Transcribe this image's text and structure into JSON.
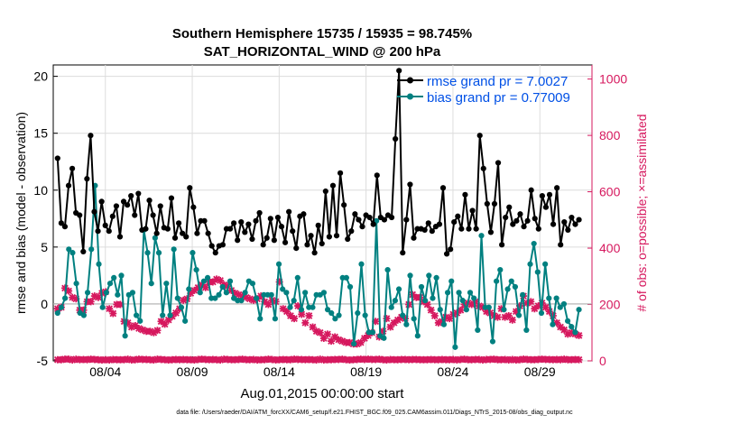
{
  "title_line1": "Southern Hemisphere 15735 / 15935 = 98.745%",
  "title_line2": "SAT_HORIZONTAL_WIND @ 200 hPa",
  "footer": "data file: /Users/raeder/DAI/ATM_forcXX/CAM6_setup/f.e21.FHIST_BGC.f09_025.CAM6assim.011/Diags_NTrS_2015-08/obs_diag_output.nc",
  "colors": {
    "rmse": "#000000",
    "bias": "#008080",
    "obs": "#d6185e",
    "legend_text": "#0050e6"
  },
  "chart_data": {
    "type": "line",
    "xlabel": "Aug.01,2015 00:00:00 start",
    "ylabel_left": "rmse and bias (model - observation)",
    "ylabel_right": "# of obs: o=possible; ×=assimilated",
    "xlim": [
      0,
      62
    ],
    "ylim_left": [
      -5,
      21
    ],
    "ylim_right": [
      0,
      1050
    ],
    "x_ticks": [
      {
        "x": 6,
        "label": "08/04"
      },
      {
        "x": 16,
        "label": "08/09"
      },
      {
        "x": 26,
        "label": "08/14"
      },
      {
        "x": 36,
        "label": "08/19"
      },
      {
        "x": 46,
        "label": "08/24"
      },
      {
        "x": 56,
        "label": "08/29"
      }
    ],
    "y_ticks_left": [
      -5,
      0,
      5,
      10,
      15,
      20
    ],
    "y_ticks_right": [
      0,
      200,
      400,
      600,
      800,
      1000
    ],
    "legend": [
      {
        "key": "rmse",
        "label": "rmse grand pr = 7.0027"
      },
      {
        "key": "bias",
        "label": "bias grand pr = 0.77009"
      }
    ],
    "series": [
      {
        "name": "rmse",
        "axis": "left",
        "values": [
          12.8,
          7.1,
          6.8,
          10.4,
          11.9,
          8.0,
          7.8,
          4.6,
          11.0,
          14.8,
          8.1,
          6.4,
          9.0,
          6.9,
          6.4,
          7.7,
          8.6,
          5.9,
          9.0,
          8.7,
          9.5,
          7.8,
          9.7,
          6.5,
          6.6,
          9.1,
          7.8,
          6.2,
          8.6,
          6.7,
          6.6,
          9.3,
          5.8,
          7.1,
          6.2,
          5.9,
          10.2,
          8.5,
          6.2,
          7.3,
          7.3,
          6.2,
          5.1,
          4.5,
          5.1,
          5.2,
          6.6,
          6.6,
          7.1,
          5.6,
          7.2,
          6.3,
          7.0,
          5.7,
          7.3,
          8.0,
          5.2,
          5.8,
          7.5,
          5.6,
          7.6,
          6.8,
          5.4,
          8.1,
          6.4,
          4.9,
          7.7,
          7.9,
          5.2,
          6.0,
          4.5,
          6.9,
          5.3,
          9.9,
          5.9,
          10.4,
          6.0,
          11.5,
          8.7,
          5.7,
          6.4,
          7.9,
          7.4,
          6.8,
          7.8,
          7.6,
          7.0,
          11.3,
          7.6,
          7.4,
          7.8,
          7.6,
          14.5,
          20.5,
          4.5,
          7.4,
          10.5,
          5.8,
          6.6,
          6.6,
          6.5,
          7.1,
          6.4,
          6.8,
          7.0,
          10.2,
          4.4,
          4.8,
          7.2,
          7.7,
          6.6,
          9.6,
          6.6,
          8.2,
          6.6,
          14.8,
          11.9,
          8.8,
          6.3,
          8.8,
          12.4,
          5.2,
          7.6,
          8.5,
          7.0,
          7.3,
          7.9,
          6.8,
          7.3,
          10.0,
          7.5,
          6.6,
          9.5,
          8.5,
          9.6,
          7.0,
          10.2,
          5.2,
          7.2,
          6.5,
          7.6,
          7.0,
          7.4
        ]
      },
      {
        "name": "bias",
        "axis": "left",
        "values": [
          -0.8,
          -0.3,
          0.5,
          4.8,
          4.5,
          1.8,
          -0.8,
          -1.0,
          1.0,
          4.8,
          10.4,
          3.5,
          -0.3,
          1.0,
          1.8,
          2.3,
          0.8,
          2.5,
          -2.8,
          0.8,
          1.0,
          -1.0,
          -1.5,
          6.5,
          4.5,
          1.8,
          5.8,
          4.5,
          -1.0,
          1.8,
          -1.0,
          4.8,
          0.5,
          -0.3,
          -1.5,
          1.3,
          4.5,
          3.0,
          1.0,
          2.0,
          2.3,
          0.5,
          0.5,
          0.8,
          1.5,
          1.0,
          2.0,
          0.5,
          0.3,
          0.3,
          1.0,
          2.0,
          1.8,
          0.5,
          -1.3,
          0.8,
          0.8,
          0.8,
          -1.3,
          3.5,
          1.3,
          1.0,
          -0.3,
          0.3,
          2.3,
          -0.5,
          1.0,
          -0.3,
          -0.3,
          0.8,
          0.8,
          1.0,
          -0.5,
          -0.8,
          -1.3,
          -1.0,
          2.3,
          2.3,
          1.5,
          -3.5,
          -0.8,
          3.5,
          -1.0,
          -2.5,
          -2.5,
          7.3,
          -2.8,
          -3.0,
          3.0,
          -0.3,
          0.3,
          1.3,
          -1.0,
          -1.8,
          2.5,
          -1.3,
          -2.8,
          1.5,
          0.3,
          2.5,
          0.5,
          2.3,
          -0.5,
          -1.8,
          1.0,
          2.0,
          -3.8,
          1.0,
          0.3,
          -0.5,
          1.0,
          0.5,
          -2.3,
          6.0,
          -0.3,
          -0.3,
          -3.3,
          2.0,
          3.0,
          -0.5,
          1.3,
          2.0,
          1.5,
          -1.0,
          0.8,
          -2.3,
          3.5,
          5.3,
          2.8,
          -0.8,
          3.5,
          0.5,
          -1.8,
          0.5,
          -0.3,
          0.0,
          -1.5,
          -2.0,
          -2.5,
          -0.5
        ]
      },
      {
        "name": "obs_possible",
        "axis": "right",
        "values": [
          4,
          4,
          6,
          6,
          3,
          6,
          4,
          5,
          4,
          6,
          5,
          4,
          3,
          4,
          3,
          5,
          4,
          4,
          4,
          6,
          3,
          4,
          6,
          5,
          5,
          4,
          3,
          6,
          5,
          4,
          3,
          4,
          5,
          4,
          5,
          4,
          4,
          3,
          5,
          6,
          5,
          4,
          5,
          4,
          3,
          6,
          5,
          4,
          4,
          5,
          6,
          4,
          4,
          5,
          3,
          4,
          4,
          6,
          5,
          3,
          4,
          5,
          4,
          4,
          6,
          5,
          5,
          4,
          5,
          4,
          3,
          6,
          3,
          4,
          4,
          5,
          5,
          6,
          4,
          3,
          4,
          5,
          6,
          5,
          6,
          5,
          5,
          6,
          4,
          3,
          5,
          4,
          4,
          5,
          5,
          4,
          5,
          5,
          4,
          4,
          4,
          5,
          4,
          4,
          5,
          4,
          4,
          5,
          3,
          5,
          6,
          4,
          4,
          5,
          5,
          3,
          5,
          5,
          6,
          4,
          4,
          5,
          3,
          5,
          3,
          4,
          6,
          5,
          4,
          4,
          5,
          6,
          5,
          5,
          4,
          5,
          4,
          6,
          4,
          4,
          5,
          4
        ]
      },
      {
        "name": "obs_assimilated",
        "axis": "right",
        "values": [
          185,
          190,
          258,
          248,
          225,
          220,
          180,
          180,
          210,
          210,
          230,
          225,
          240,
          245,
          185,
          168,
          200,
          200,
          140,
          135,
          120,
          125,
          115,
          110,
          105,
          105,
          100,
          108,
          140,
          130,
          145,
          158,
          170,
          185,
          215,
          220,
          240,
          250,
          260,
          270,
          260,
          280,
          280,
          290,
          285,
          270,
          265,
          250,
          240,
          235,
          230,
          225,
          220,
          215,
          220,
          230,
          210,
          200,
          215,
          210,
          280,
          185,
          175,
          160,
          150,
          195,
          165,
          135,
          160,
          120,
          105,
          100,
          80,
          95,
          70,
          85,
          75,
          70,
          65,
          65,
          60,
          60,
          65,
          80,
          90,
          100,
          140,
          85,
          105,
          150,
          120,
          135,
          145,
          155,
          150,
          200,
          235,
          225,
          225,
          210,
          200,
          180,
          160,
          135,
          140,
          155,
          150,
          165,
          170,
          180,
          200,
          205,
          200,
          210,
          195,
          190,
          175,
          170,
          160,
          155,
          185,
          155,
          160,
          145,
          175,
          195,
          230,
          205,
          210,
          185,
          195,
          205,
          190,
          175,
          160,
          135,
          120,
          110,
          95,
          100,
          95,
          90
        ]
      }
    ]
  }
}
